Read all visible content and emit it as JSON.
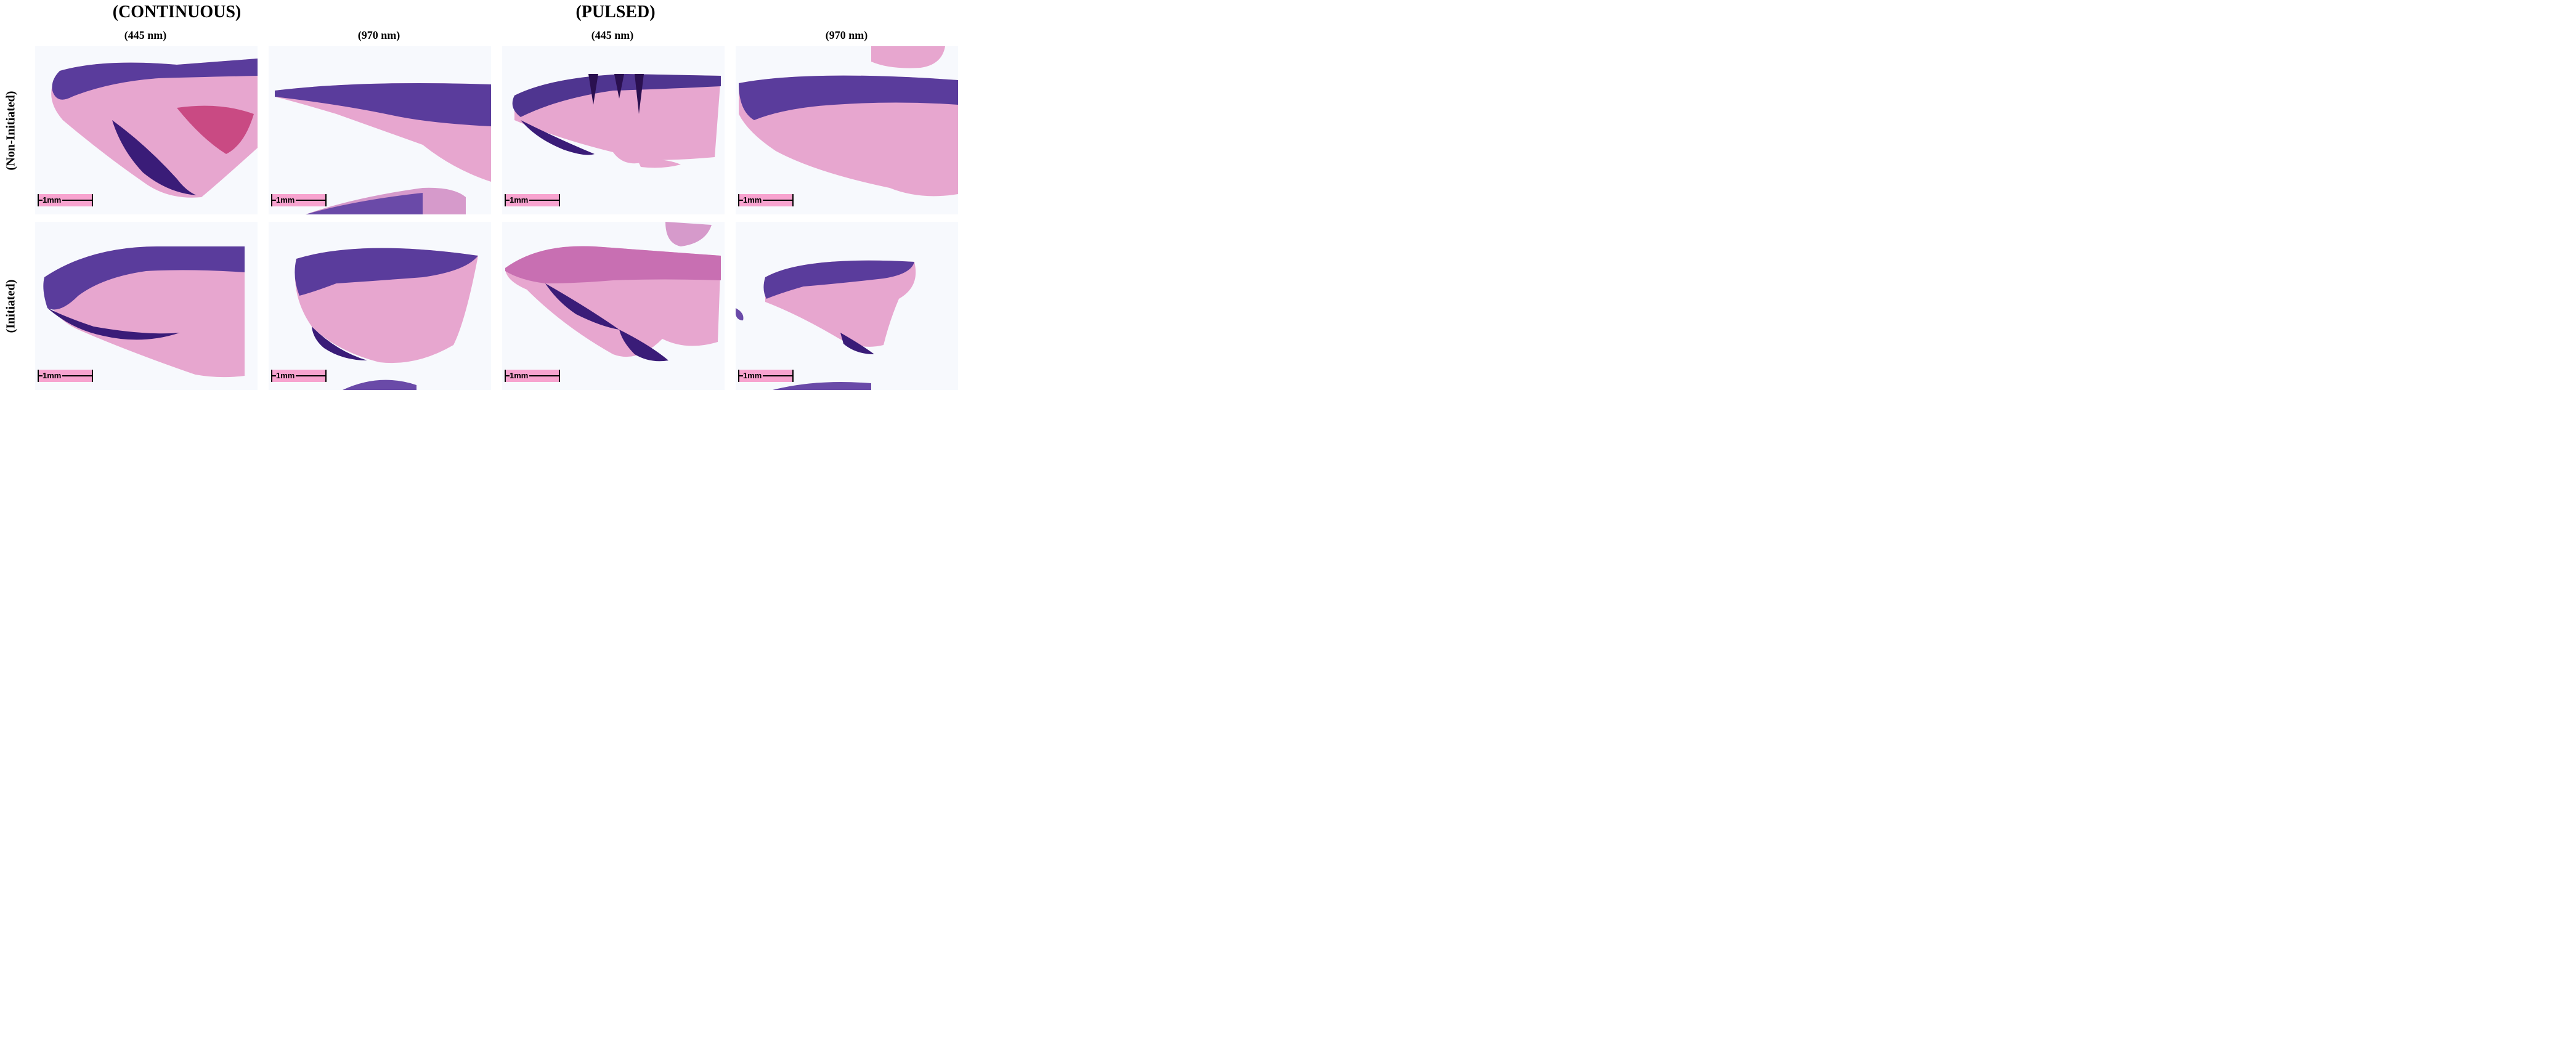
{
  "groups": [
    {
      "title": "(CONTINUOUS)"
    },
    {
      "title": "(PULSED)"
    }
  ],
  "columns": [
    {
      "label": "(445 nm)"
    },
    {
      "label": "(970 nm)"
    },
    {
      "label": "(445 nm)"
    },
    {
      "label": "(970 nm)"
    }
  ],
  "rows": [
    {
      "label": "(Non-Initiated)"
    },
    {
      "label": "(Initiated)"
    }
  ],
  "scale_bar": {
    "label": "1mm"
  },
  "colors": {
    "background": "#f7f9fd",
    "epithelium": "#5a3c9c",
    "stroma": "#e7a6cf",
    "scale_bar": "#f7a3cf",
    "caption_text": "#2340d0"
  }
}
